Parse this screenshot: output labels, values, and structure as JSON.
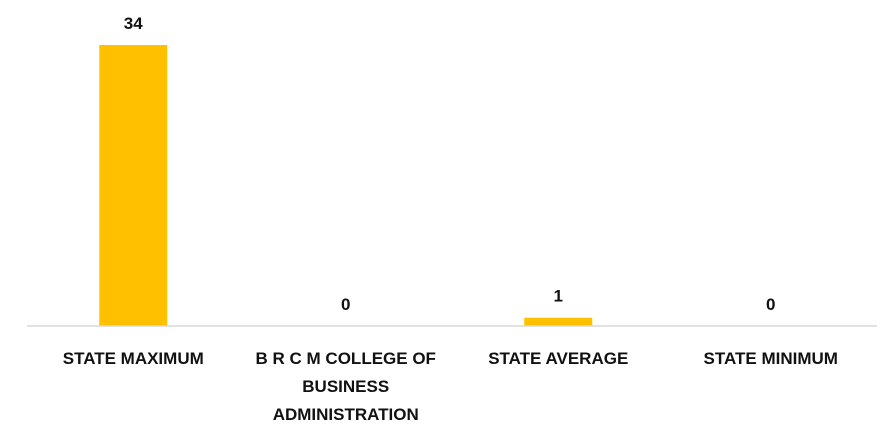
{
  "chart_data": {
    "type": "bar",
    "categories": [
      [
        "STATE MAXIMUM"
      ],
      [
        "B R C M COLLEGE OF",
        "BUSINESS",
        "ADMINISTRATION"
      ],
      [
        "STATE AVERAGE"
      ],
      [
        "STATE MINIMUM"
      ]
    ],
    "values": [
      34,
      0,
      1,
      0
    ],
    "data_labels": [
      "34",
      "0",
      "1",
      "0"
    ],
    "bar_color": "#FFC000",
    "axis_color": "#D9D9D9",
    "ylim": [
      0,
      34
    ],
    "grid": false,
    "legend": "none",
    "title": "",
    "xlabel": "",
    "ylabel": ""
  }
}
